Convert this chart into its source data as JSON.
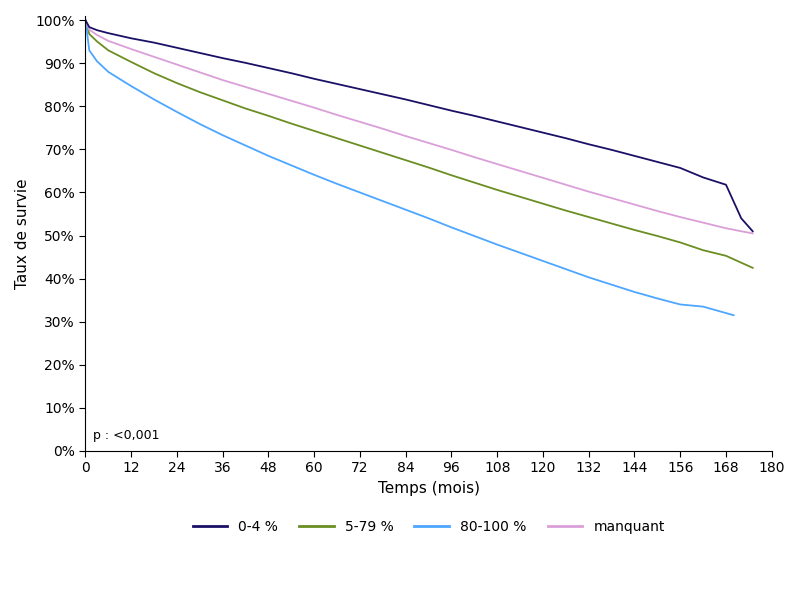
{
  "title": "",
  "xlabel": "Temps (mois)",
  "ylabel": "Taux de survie",
  "xlim": [
    0,
    180
  ],
  "ylim": [
    0,
    1.01
  ],
  "xticks": [
    0,
    12,
    24,
    36,
    48,
    60,
    72,
    84,
    96,
    108,
    120,
    132,
    144,
    156,
    168,
    180
  ],
  "yticks": [
    0.0,
    0.1,
    0.2,
    0.3,
    0.4,
    0.5,
    0.6,
    0.7,
    0.8,
    0.9,
    1.0
  ],
  "pvalue_text": "p : <0,001",
  "legend_labels": [
    "0-4 %",
    "5-79 %",
    "80-100 %",
    "manquant"
  ],
  "legend_colors": [
    "#1a1066",
    "#6b8e23",
    "#4da6ff",
    "#da9fd8"
  ],
  "series": {
    "0-4": {
      "color": "#1a1066",
      "linewidth": 1.3,
      "x": [
        0,
        1,
        3,
        6,
        12,
        18,
        24,
        30,
        36,
        42,
        48,
        54,
        60,
        66,
        72,
        78,
        84,
        90,
        96,
        102,
        108,
        114,
        120,
        126,
        132,
        138,
        144,
        150,
        156,
        162,
        168,
        172,
        175
      ],
      "y": [
        1.0,
        0.984,
        0.977,
        0.97,
        0.958,
        0.948,
        0.936,
        0.924,
        0.912,
        0.901,
        0.889,
        0.877,
        0.864,
        0.852,
        0.84,
        0.828,
        0.816,
        0.803,
        0.79,
        0.778,
        0.765,
        0.752,
        0.739,
        0.726,
        0.712,
        0.699,
        0.685,
        0.671,
        0.657,
        0.635,
        0.618,
        0.54,
        0.51
      ]
    },
    "5-79": {
      "color": "#6b8e23",
      "linewidth": 1.3,
      "x": [
        0,
        1,
        3,
        6,
        12,
        18,
        24,
        30,
        36,
        42,
        48,
        54,
        60,
        66,
        72,
        78,
        84,
        90,
        96,
        102,
        108,
        114,
        120,
        126,
        132,
        138,
        144,
        150,
        156,
        162,
        168,
        172,
        175
      ],
      "y": [
        1.0,
        0.968,
        0.951,
        0.93,
        0.903,
        0.877,
        0.854,
        0.833,
        0.814,
        0.795,
        0.778,
        0.76,
        0.743,
        0.726,
        0.709,
        0.692,
        0.675,
        0.658,
        0.64,
        0.623,
        0.606,
        0.59,
        0.574,
        0.558,
        0.543,
        0.528,
        0.513,
        0.499,
        0.484,
        0.466,
        0.453,
        0.437,
        0.425
      ]
    },
    "80-100": {
      "color": "#4da6ff",
      "linewidth": 1.3,
      "x": [
        0,
        1,
        3,
        6,
        12,
        18,
        24,
        30,
        36,
        42,
        48,
        54,
        60,
        66,
        72,
        78,
        84,
        90,
        96,
        102,
        108,
        114,
        120,
        126,
        132,
        138,
        144,
        150,
        156,
        162,
        168,
        170
      ],
      "y": [
        1.0,
        0.93,
        0.905,
        0.88,
        0.847,
        0.816,
        0.787,
        0.759,
        0.733,
        0.709,
        0.685,
        0.663,
        0.641,
        0.62,
        0.6,
        0.58,
        0.56,
        0.54,
        0.519,
        0.499,
        0.479,
        0.46,
        0.441,
        0.422,
        0.403,
        0.386,
        0.369,
        0.354,
        0.34,
        0.335,
        0.32,
        0.315
      ]
    },
    "manquant": {
      "color": "#da9fd8",
      "linewidth": 1.3,
      "x": [
        0,
        1,
        3,
        6,
        12,
        18,
        24,
        30,
        36,
        42,
        48,
        54,
        60,
        66,
        72,
        78,
        84,
        90,
        96,
        102,
        108,
        114,
        120,
        126,
        132,
        138,
        144,
        150,
        156,
        162,
        168,
        172,
        175
      ],
      "y": [
        1.0,
        0.978,
        0.966,
        0.952,
        0.933,
        0.915,
        0.897,
        0.879,
        0.861,
        0.845,
        0.829,
        0.813,
        0.797,
        0.78,
        0.764,
        0.748,
        0.731,
        0.715,
        0.699,
        0.682,
        0.666,
        0.65,
        0.634,
        0.618,
        0.602,
        0.587,
        0.572,
        0.557,
        0.543,
        0.53,
        0.517,
        0.51,
        0.505
      ]
    }
  }
}
